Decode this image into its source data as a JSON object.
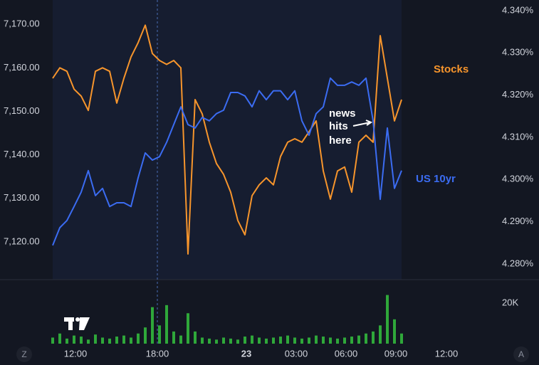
{
  "chart_data": {
    "type": "line",
    "x": [
      0,
      1,
      2,
      3,
      4,
      5,
      6,
      7,
      8,
      9,
      10,
      11,
      12,
      13,
      14,
      15,
      16,
      17,
      18,
      19,
      20,
      21,
      22,
      23,
      24,
      25,
      26,
      27,
      28,
      29,
      30,
      31,
      32,
      33,
      34,
      35,
      36,
      37,
      38,
      39,
      40,
      41,
      42,
      43,
      44,
      45,
      46,
      47,
      48,
      49
    ],
    "xlim": [
      -7.4,
      61.6
    ],
    "xticks": [
      {
        "value": 3.2,
        "label": "12:00"
      },
      {
        "value": 14.7,
        "label": "18:00"
      },
      {
        "value": 27.2,
        "label": "23"
      },
      {
        "value": 34.2,
        "label": "03:00"
      },
      {
        "value": 41.2,
        "label": "06:00"
      },
      {
        "value": 48.2,
        "label": "09:00"
      },
      {
        "value": 55.3,
        "label": "12:00"
      }
    ],
    "ylim": [
      7111.3,
      7175.6
    ],
    "yticks": [
      {
        "value": 7120,
        "label": "7,120.00"
      },
      {
        "value": 7130,
        "label": "7,130.00"
      },
      {
        "value": 7140,
        "label": "7,140.00"
      },
      {
        "value": 7150,
        "label": "7,150.00"
      },
      {
        "value": 7160,
        "label": "7,160.00"
      },
      {
        "value": 7170,
        "label": "7,170.00"
      }
    ],
    "y2lim": [
      4.2763,
      4.3425
    ],
    "y2ticks": [
      {
        "value": 4.28,
        "label": "4.280%"
      },
      {
        "value": 4.29,
        "label": "4.290%"
      },
      {
        "value": 4.3,
        "label": "4.300%"
      },
      {
        "value": 4.31,
        "label": "4.310%"
      },
      {
        "value": 4.32,
        "label": "4.320%"
      },
      {
        "value": 4.33,
        "label": "4.330%"
      },
      {
        "value": 4.34,
        "label": "4.340%"
      }
    ],
    "series": [
      {
        "name": "Stocks",
        "color": "#f7952c",
        "axis": "y",
        "values": [
          7157.6,
          7160.0,
          7159.2,
          7155.1,
          7153.5,
          7150.2,
          7159.2,
          7160.0,
          7159.2,
          7151.9,
          7157.6,
          7162.5,
          7165.8,
          7169.8,
          7163.3,
          7161.7,
          7160.8,
          7161.7,
          7160.0,
          7117.2,
          7152.7,
          7149.4,
          7142.9,
          7138.0,
          7135.5,
          7131.4,
          7124.9,
          7121.6,
          7130.6,
          7133.1,
          7134.7,
          7133.1,
          7139.6,
          7142.9,
          7143.7,
          7142.9,
          7145.3,
          7147.8,
          7136.3,
          7129.8,
          7136.3,
          7137.2,
          7131.4,
          7142.9,
          7144.5,
          7142.9,
          7167.4,
          7157.6,
          7147.8,
          7152.7
        ]
      },
      {
        "name": "US 10yr",
        "color": "#3b6cf2",
        "axis": "y2",
        "values": [
          4.2844,
          4.2886,
          4.2903,
          4.2936,
          4.297,
          4.3021,
          4.2962,
          4.2979,
          4.2936,
          4.2945,
          4.2945,
          4.2936,
          4.3004,
          4.3063,
          4.3046,
          4.3054,
          4.3088,
          4.313,
          4.3172,
          4.313,
          4.3122,
          4.3147,
          4.3139,
          4.3156,
          4.3164,
          4.3206,
          4.3206,
          4.3198,
          4.3172,
          4.321,
          4.3189,
          4.321,
          4.321,
          4.3189,
          4.321,
          4.3139,
          4.3105,
          4.3156,
          4.3172,
          4.324,
          4.3223,
          4.3223,
          4.3231,
          4.3223,
          4.324,
          4.3139,
          4.2953,
          4.3122,
          4.2979,
          4.3021
        ]
      }
    ],
    "volume": {
      "color": "#2fa83a",
      "ylim": [
        0,
        31579
      ],
      "yticks": [
        {
          "value": 20000,
          "label": "20K"
        }
      ],
      "values": [
        3000,
        5000,
        2500,
        4000,
        3500,
        2000,
        4500,
        3000,
        2500,
        3500,
        4000,
        3000,
        5000,
        8000,
        18000,
        9000,
        19000,
        6000,
        4000,
        15000,
        6000,
        3000,
        2500,
        2000,
        3000,
        2500,
        2000,
        3500,
        4000,
        3000,
        2500,
        3000,
        3500,
        4000,
        3000,
        2500,
        3000,
        4000,
        3500,
        3000,
        2500,
        3000,
        3500,
        4000,
        5000,
        6000,
        9000,
        24000,
        12000,
        5000
      ]
    },
    "legend_labels": "inline",
    "grid": false,
    "annotation": [
      "news",
      "hits",
      "here"
    ],
    "controls": [
      "Z",
      "A"
    ]
  }
}
